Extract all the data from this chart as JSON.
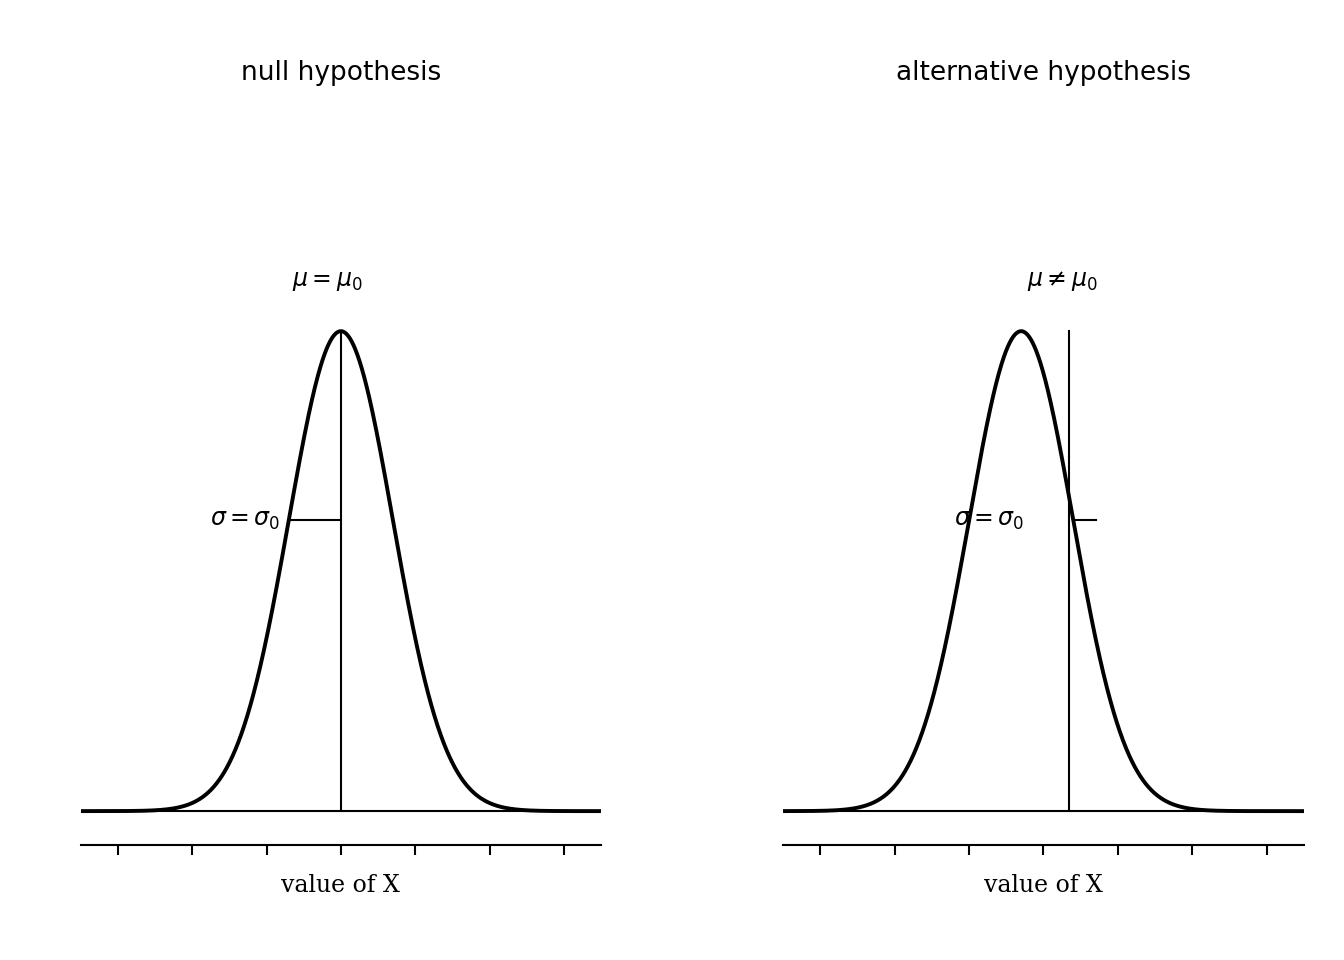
{
  "background_color": "#ffffff",
  "title_left": "null hypothesis",
  "title_right": "alternative hypothesis",
  "title_fontsize": 19,
  "xlabel": "value of X",
  "xlabel_fontsize": 17,
  "mu_label_null": "$\\mu = \\mu_0$",
  "mu_label_alt": "$\\mu \\neq \\mu_0$",
  "sigma_label": "$\\sigma = \\sigma_0$",
  "mu_fontsize": 17,
  "sigma_fontsize": 17,
  "curve_color": "#000000",
  "line_color": "#000000",
  "lw_curve": 2.8,
  "lw_line": 1.5,
  "null_mean": 0.0,
  "null_std": 0.7,
  "alt_mean": -0.3,
  "alt_std": 0.7,
  "alt_vline": 0.35,
  "x_range": [
    -3.5,
    3.5
  ],
  "tick_positions": [
    -3,
    -2,
    -1,
    0,
    1,
    2,
    3
  ]
}
